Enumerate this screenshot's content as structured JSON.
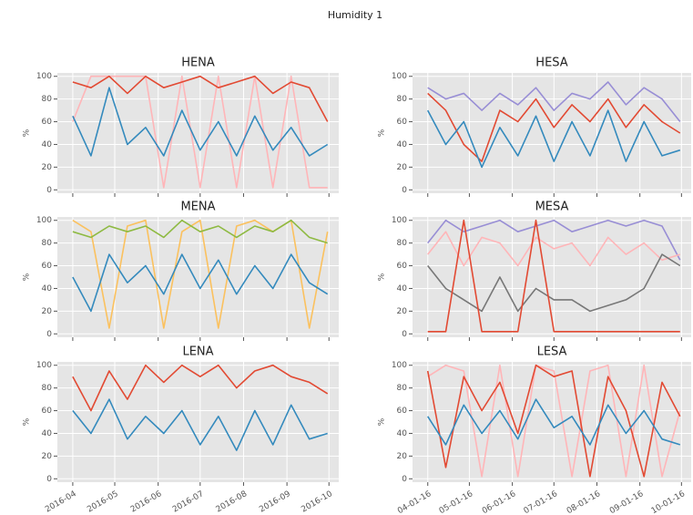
{
  "title": "Humidity 1",
  "chart_data": [
    {
      "type": "line",
      "title": "HENA",
      "ylabel": "%",
      "ylim": [
        -3,
        103
      ],
      "yticks": [
        0,
        20,
        40,
        60,
        80,
        100
      ],
      "xlim": [
        "2016-03-21",
        "2016-10-08"
      ],
      "xticks": [
        "2016-04-01",
        "2016-05-01",
        "2016-06-01",
        "2016-07-01",
        "2016-08-01",
        "2016-09-01",
        "2016-10-01"
      ],
      "grid": true,
      "x": [
        "2016-04-01",
        "2016-04-14",
        "2016-04-27",
        "2016-05-10",
        "2016-05-23",
        "2016-06-05",
        "2016-06-18",
        "2016-07-01",
        "2016-07-14",
        "2016-07-27",
        "2016-08-09",
        "2016-08-22",
        "2016-09-04",
        "2016-09-17",
        "2016-09-30"
      ],
      "series": [
        {
          "color": "#FFB5B8",
          "values": [
            60,
            100,
            100,
            100,
            100,
            2,
            100,
            2,
            100,
            2,
            100,
            2,
            100,
            2,
            2
          ]
        },
        {
          "color": "#E24A33",
          "values": [
            95,
            90,
            100,
            85,
            100,
            90,
            95,
            100,
            90,
            95,
            100,
            85,
            95,
            90,
            60
          ]
        },
        {
          "color": "#348ABD",
          "values": [
            65,
            30,
            90,
            40,
            55,
            30,
            70,
            35,
            60,
            30,
            65,
            35,
            55,
            30,
            40
          ]
        }
      ]
    },
    {
      "type": "line",
      "title": "HESA",
      "ylabel": "%",
      "ylim": [
        -3,
        103
      ],
      "yticks": [
        0,
        20,
        40,
        60,
        80,
        100
      ],
      "xlim": [
        "2016-03-21",
        "2016-10-08"
      ],
      "xticks": [
        "2016-04-01",
        "2016-05-01",
        "2016-06-01",
        "2016-07-01",
        "2016-08-01",
        "2016-09-01",
        "2016-10-01"
      ],
      "grid": true,
      "x": [
        "2016-04-01",
        "2016-04-14",
        "2016-04-27",
        "2016-05-10",
        "2016-05-23",
        "2016-06-05",
        "2016-06-18",
        "2016-07-01",
        "2016-07-14",
        "2016-07-27",
        "2016-08-09",
        "2016-08-22",
        "2016-09-04",
        "2016-09-17",
        "2016-09-30"
      ],
      "series": [
        {
          "color": "#988ED5",
          "values": [
            90,
            80,
            85,
            70,
            85,
            75,
            90,
            70,
            85,
            80,
            95,
            75,
            90,
            80,
            60
          ]
        },
        {
          "color": "#E24A33",
          "values": [
            85,
            70,
            40,
            25,
            70,
            60,
            80,
            55,
            75,
            60,
            80,
            55,
            75,
            60,
            50
          ]
        },
        {
          "color": "#348ABD",
          "values": [
            70,
            40,
            60,
            20,
            55,
            30,
            65,
            25,
            60,
            30,
            70,
            25,
            60,
            30,
            35
          ]
        }
      ]
    },
    {
      "type": "line",
      "title": "MENA",
      "ylabel": "%",
      "ylim": [
        -3,
        103
      ],
      "yticks": [
        0,
        20,
        40,
        60,
        80,
        100
      ],
      "xlim": [
        "2016-03-21",
        "2016-10-08"
      ],
      "xticks": [
        "2016-04-01",
        "2016-05-01",
        "2016-06-01",
        "2016-07-01",
        "2016-08-01",
        "2016-09-01",
        "2016-10-01"
      ],
      "grid": true,
      "x": [
        "2016-04-01",
        "2016-04-14",
        "2016-04-27",
        "2016-05-10",
        "2016-05-23",
        "2016-06-05",
        "2016-06-18",
        "2016-07-01",
        "2016-07-14",
        "2016-07-27",
        "2016-08-09",
        "2016-08-22",
        "2016-09-04",
        "2016-09-17",
        "2016-09-30"
      ],
      "series": [
        {
          "color": "#FBC15E",
          "values": [
            100,
            90,
            5,
            95,
            100,
            5,
            90,
            100,
            5,
            95,
            100,
            90,
            100,
            5,
            90
          ]
        },
        {
          "color": "#8EBA42",
          "values": [
            90,
            85,
            95,
            90,
            95,
            85,
            100,
            90,
            95,
            85,
            95,
            90,
            100,
            85,
            80
          ]
        },
        {
          "color": "#348ABD",
          "values": [
            50,
            20,
            70,
            45,
            60,
            35,
            70,
            40,
            65,
            35,
            60,
            40,
            70,
            45,
            35
          ]
        }
      ]
    },
    {
      "type": "line",
      "title": "MESA",
      "ylabel": "%",
      "ylim": [
        -3,
        103
      ],
      "yticks": [
        0,
        20,
        40,
        60,
        80,
        100
      ],
      "xlim": [
        "2016-03-21",
        "2016-10-08"
      ],
      "xticks": [
        "2016-04-01",
        "2016-05-01",
        "2016-06-01",
        "2016-07-01",
        "2016-08-01",
        "2016-09-01",
        "2016-10-01"
      ],
      "grid": true,
      "x": [
        "2016-04-01",
        "2016-04-14",
        "2016-04-27",
        "2016-05-10",
        "2016-05-23",
        "2016-06-05",
        "2016-06-18",
        "2016-07-01",
        "2016-07-14",
        "2016-07-27",
        "2016-08-09",
        "2016-08-22",
        "2016-09-04",
        "2016-09-17",
        "2016-09-30"
      ],
      "series": [
        {
          "color": "#988ED5",
          "values": [
            80,
            100,
            90,
            95,
            100,
            90,
            95,
            100,
            90,
            95,
            100,
            95,
            100,
            95,
            65
          ]
        },
        {
          "color": "#FFB5B8",
          "values": [
            70,
            90,
            60,
            85,
            80,
            60,
            85,
            75,
            80,
            60,
            85,
            70,
            80,
            65,
            70
          ]
        },
        {
          "color": "#777777",
          "values": [
            60,
            40,
            30,
            20,
            50,
            20,
            40,
            30,
            30,
            20,
            25,
            30,
            40,
            70,
            60
          ]
        },
        {
          "color": "#E24A33",
          "values": [
            2,
            2,
            100,
            2,
            2,
            2,
            100,
            2,
            2,
            2,
            2,
            2,
            2,
            2,
            2
          ]
        }
      ]
    },
    {
      "type": "line",
      "title": "LENA",
      "ylabel": "%",
      "ylim": [
        -3,
        103
      ],
      "yticks": [
        0,
        20,
        40,
        60,
        80,
        100
      ],
      "xlim": [
        "2016-03-21",
        "2016-10-08"
      ],
      "xticks": [
        {
          "value": "2016-04-01",
          "label": "2016-04"
        },
        {
          "value": "2016-05-01",
          "label": "2016-05"
        },
        {
          "value": "2016-06-01",
          "label": "2016-06"
        },
        {
          "value": "2016-07-01",
          "label": "2016-07"
        },
        {
          "value": "2016-08-01",
          "label": "2016-08"
        },
        {
          "value": "2016-09-01",
          "label": "2016-09"
        },
        {
          "value": "2016-10-01",
          "label": "2016-10"
        }
      ],
      "grid": true,
      "x": [
        "2016-04-01",
        "2016-04-14",
        "2016-04-27",
        "2016-05-10",
        "2016-05-23",
        "2016-06-05",
        "2016-06-18",
        "2016-07-01",
        "2016-07-14",
        "2016-07-27",
        "2016-08-09",
        "2016-08-22",
        "2016-09-04",
        "2016-09-17",
        "2016-09-30"
      ],
      "series": [
        {
          "color": "#E24A33",
          "values": [
            90,
            60,
            95,
            70,
            100,
            85,
            100,
            90,
            100,
            80,
            95,
            100,
            90,
            85,
            75
          ]
        },
        {
          "color": "#348ABD",
          "values": [
            60,
            40,
            70,
            35,
            55,
            40,
            60,
            30,
            55,
            25,
            60,
            30,
            65,
            35,
            40
          ]
        }
      ]
    },
    {
      "type": "line",
      "title": "LESA",
      "ylabel": "%",
      "ylim": [
        -3,
        103
      ],
      "yticks": [
        0,
        20,
        40,
        60,
        80,
        100
      ],
      "xlim": [
        "2016-03-21",
        "2016-10-08"
      ],
      "xticks": [
        {
          "value": "2016-04-01",
          "label": "04-01-16"
        },
        {
          "value": "2016-05-01",
          "label": "05-01-16"
        },
        {
          "value": "2016-06-01",
          "label": "06-01-16"
        },
        {
          "value": "2016-07-01",
          "label": "07-01-16"
        },
        {
          "value": "2016-08-01",
          "label": "08-01-16"
        },
        {
          "value": "2016-09-01",
          "label": "09-01-16"
        },
        {
          "value": "2016-10-01",
          "label": "10-01-16"
        }
      ],
      "grid": true,
      "x": [
        "2016-04-01",
        "2016-04-14",
        "2016-04-27",
        "2016-05-10",
        "2016-05-23",
        "2016-06-05",
        "2016-06-18",
        "2016-07-01",
        "2016-07-14",
        "2016-07-27",
        "2016-08-09",
        "2016-08-22",
        "2016-09-04",
        "2016-09-17",
        "2016-09-30"
      ],
      "series": [
        {
          "color": "#FFB5B8",
          "values": [
            90,
            100,
            95,
            2,
            100,
            2,
            100,
            95,
            2,
            95,
            100,
            2,
            100,
            2,
            60
          ]
        },
        {
          "color": "#E24A33",
          "values": [
            95,
            10,
            90,
            60,
            85,
            40,
            100,
            90,
            95,
            2,
            90,
            60,
            2,
            85,
            55
          ]
        },
        {
          "color": "#348ABD",
          "values": [
            55,
            30,
            65,
            40,
            60,
            35,
            70,
            45,
            55,
            30,
            65,
            40,
            60,
            35,
            30
          ]
        }
      ]
    }
  ]
}
